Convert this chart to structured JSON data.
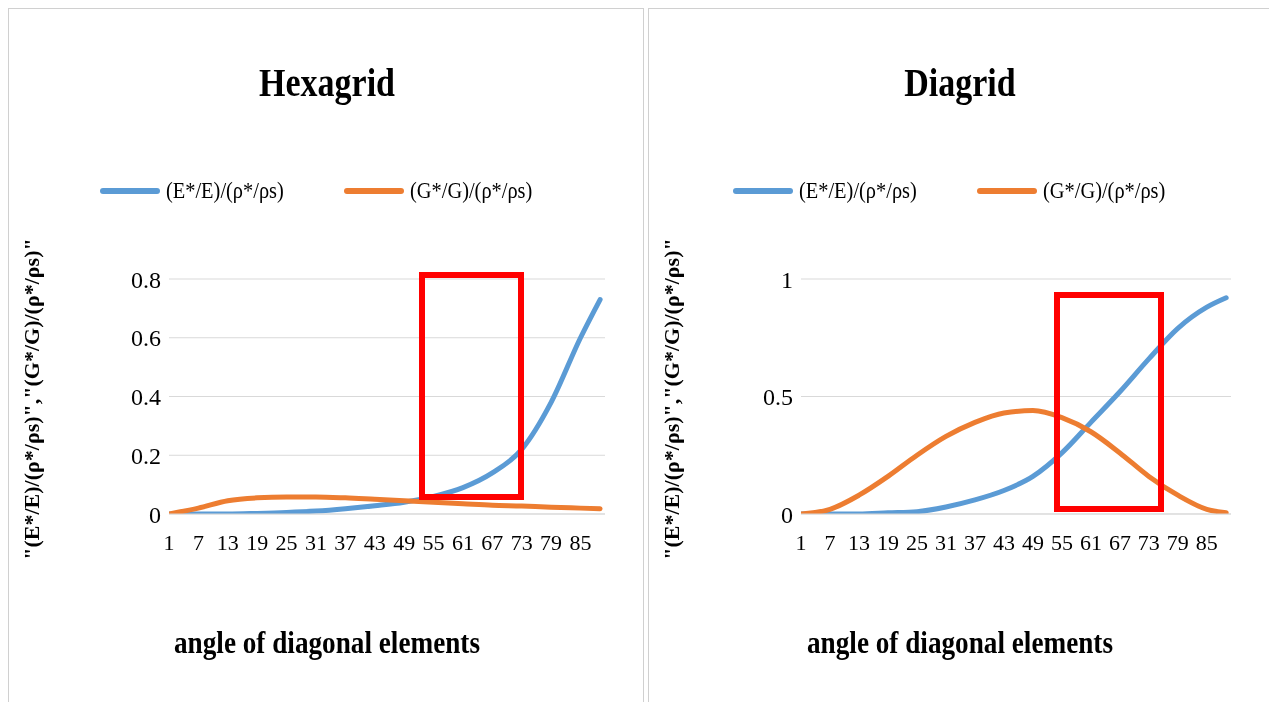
{
  "chart_data": [
    {
      "type": "line",
      "title": "Hexagrid",
      "xlabel": "angle of diagonal elements",
      "ylabel": "\"(E*/E)/(ρ*/ρs)\",\"(G*/G)/(ρ*/ρs)\"",
      "x": [
        1,
        7,
        13,
        19,
        25,
        31,
        37,
        43,
        49,
        55,
        61,
        67,
        73,
        79,
        85,
        89
      ],
      "xlim": [
        1,
        90
      ],
      "xticks": [
        1,
        7,
        13,
        19,
        25,
        31,
        37,
        43,
        49,
        55,
        61,
        67,
        73,
        79,
        85
      ],
      "ylim": [
        0,
        0.8
      ],
      "yticks": [
        0,
        0.2,
        0.4,
        0.6,
        0.8
      ],
      "grid": "y",
      "legend": "top",
      "marker": "none",
      "series": [
        {
          "name": "(E*/E)/(ρ*/ρs)",
          "color": "#5b9bd5",
          "values": [
            0,
            0,
            0,
            0.002,
            0.005,
            0.01,
            0.018,
            0.028,
            0.04,
            0.06,
            0.09,
            0.14,
            0.22,
            0.38,
            0.6,
            0.73
          ]
        },
        {
          "name": "(G*/G)/(ρ*/ρs)",
          "color": "#ed7d31",
          "values": [
            0,
            0.02,
            0.045,
            0.055,
            0.058,
            0.058,
            0.055,
            0.05,
            0.045,
            0.04,
            0.035,
            0.03,
            0.027,
            0.023,
            0.02,
            0.018
          ]
        }
      ]
    },
    {
      "type": "line",
      "title": "Diagrid",
      "xlabel": "angle of diagonal elements",
      "ylabel": "\"(E*/E)/(ρ*/ρs)\",\"(G*/G)/(ρ*/ρs)\"",
      "x": [
        1,
        7,
        13,
        19,
        25,
        31,
        37,
        43,
        49,
        55,
        61,
        67,
        73,
        79,
        85,
        89
      ],
      "xlim": [
        1,
        90
      ],
      "xticks": [
        1,
        7,
        13,
        19,
        25,
        31,
        37,
        43,
        49,
        55,
        61,
        67,
        73,
        79,
        85
      ],
      "ylim": [
        0,
        1
      ],
      "yticks": [
        0,
        0.5,
        1
      ],
      "grid": "y",
      "legend": "top",
      "marker": "none",
      "series": [
        {
          "name": "(E*/E)/(ρ*/ρs)",
          "color": "#5b9bd5",
          "values": [
            0,
            0,
            0,
            0.005,
            0.01,
            0.03,
            0.06,
            0.1,
            0.16,
            0.26,
            0.39,
            0.52,
            0.66,
            0.79,
            0.88,
            0.92
          ]
        },
        {
          "name": "(G*/G)/(ρ*/ρs)",
          "color": "#ed7d31",
          "values": [
            0,
            0.02,
            0.08,
            0.16,
            0.25,
            0.33,
            0.39,
            0.43,
            0.44,
            0.41,
            0.35,
            0.26,
            0.16,
            0.08,
            0.02,
            0.005
          ]
        }
      ]
    }
  ]
}
